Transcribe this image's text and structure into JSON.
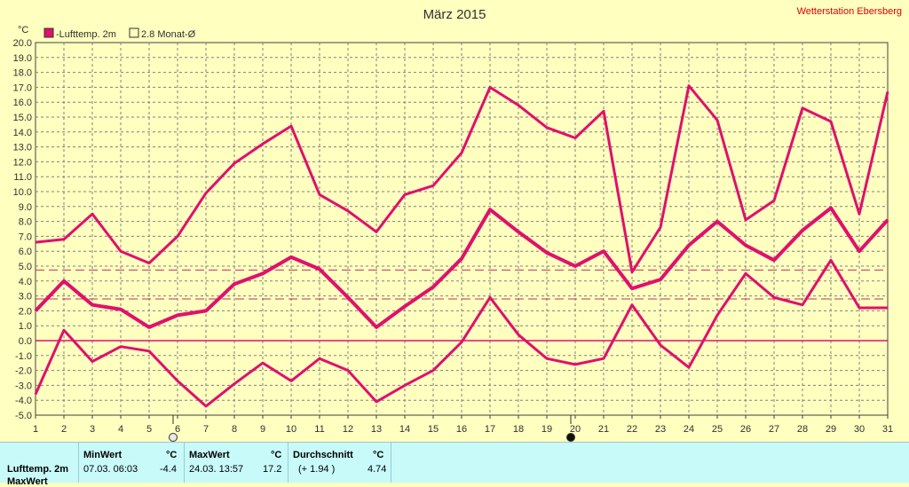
{
  "header": {
    "title": "März 2015",
    "station": "Wetterstation Ebersberg",
    "unit": "°C"
  },
  "legend": [
    {
      "label": "-Lufttemp. 2m",
      "color": "#e0106c",
      "filled": true
    },
    {
      "label": "2.8 Monat-Ø",
      "color": "#e0106c",
      "filled": false
    }
  ],
  "chart_data": {
    "type": "line",
    "x": [
      1,
      2,
      3,
      4,
      5,
      6,
      7,
      8,
      9,
      10,
      11,
      12,
      13,
      14,
      15,
      16,
      17,
      18,
      19,
      20,
      21,
      22,
      23,
      24,
      25,
      26,
      27,
      28,
      29,
      30,
      31
    ],
    "ylim": [
      -5.0,
      20.0
    ],
    "yticks": [
      "20.0",
      "19.0",
      "18.0",
      "17.0",
      "16.0",
      "15.0",
      "14.0",
      "13.0",
      "12.0",
      "11.0",
      "10.0",
      "9.0",
      "8.0",
      "7.0",
      "6.0",
      "5.0",
      "4.0",
      "3.0",
      "2.0",
      "1.0",
      "0.0",
      "-1.0",
      "-2.0",
      "-3.0",
      "-4.0",
      "-5.0"
    ],
    "xticks": [
      "1",
      "2",
      "3",
      "4",
      "5",
      "6",
      "7",
      "8",
      "9",
      "10",
      "11",
      "12",
      "13",
      "14",
      "15",
      "16",
      "17",
      "18",
      "19",
      "20",
      "21",
      "22",
      "23",
      "24",
      "25",
      "26",
      "27",
      "28",
      "29",
      "30",
      "31"
    ],
    "grid": true,
    "series": [
      {
        "role": "max",
        "values": [
          6.6,
          6.8,
          8.5,
          6.0,
          5.2,
          7.0,
          9.9,
          11.9,
          13.2,
          14.4,
          9.8,
          8.7,
          7.3,
          9.8,
          10.4,
          12.6,
          17.0,
          15.8,
          14.3,
          13.6,
          15.4,
          4.6,
          7.6,
          17.1,
          14.8,
          8.1,
          9.4,
          15.6,
          14.7,
          8.5,
          16.7
        ]
      },
      {
        "role": "mean",
        "values": [
          2.0,
          4.0,
          2.4,
          2.1,
          0.9,
          1.7,
          2.0,
          3.8,
          4.5,
          5.6,
          4.8,
          2.9,
          0.9,
          2.3,
          3.6,
          5.5,
          8.8,
          7.3,
          5.9,
          5.0,
          6.0,
          3.5,
          4.1,
          6.4,
          8.0,
          6.4,
          5.4,
          7.4,
          8.9,
          6.0,
          8.1
        ]
      },
      {
        "role": "min",
        "values": [
          -3.6,
          0.7,
          -1.4,
          -0.4,
          -0.7,
          -2.7,
          -4.4,
          -2.9,
          -1.5,
          -2.7,
          -1.2,
          -2.0,
          -4.1,
          -3.0,
          -2.0,
          -0.1,
          2.9,
          0.4,
          -1.2,
          -1.6,
          -1.2,
          2.4,
          -0.3,
          -1.8,
          1.7,
          4.5,
          2.9,
          2.4,
          5.4,
          2.2,
          2.2
        ]
      }
    ],
    "reference_lines": [
      4.74,
      2.8
    ],
    "zero_line": 0.0,
    "moon_phases": [
      {
        "day": 6,
        "phase": "full"
      },
      {
        "day": 20,
        "phase": "new"
      }
    ]
  },
  "stats": {
    "row_label": "Lufttemp. 2m",
    "row_label_2": "MaxWert",
    "min_header": "MinWert",
    "min_unit": "°C",
    "min_date": "07.03.  06:03",
    "min_value": "-4.4",
    "max_header": "MaxWert",
    "max_unit": "°C",
    "max_date": "24.03.  13:57",
    "max_value": "17.2",
    "avg_header": "Durchschnitt",
    "avg_unit": "°C",
    "avg_delta": "(+ 1.94 )",
    "avg_value": "4.74"
  }
}
